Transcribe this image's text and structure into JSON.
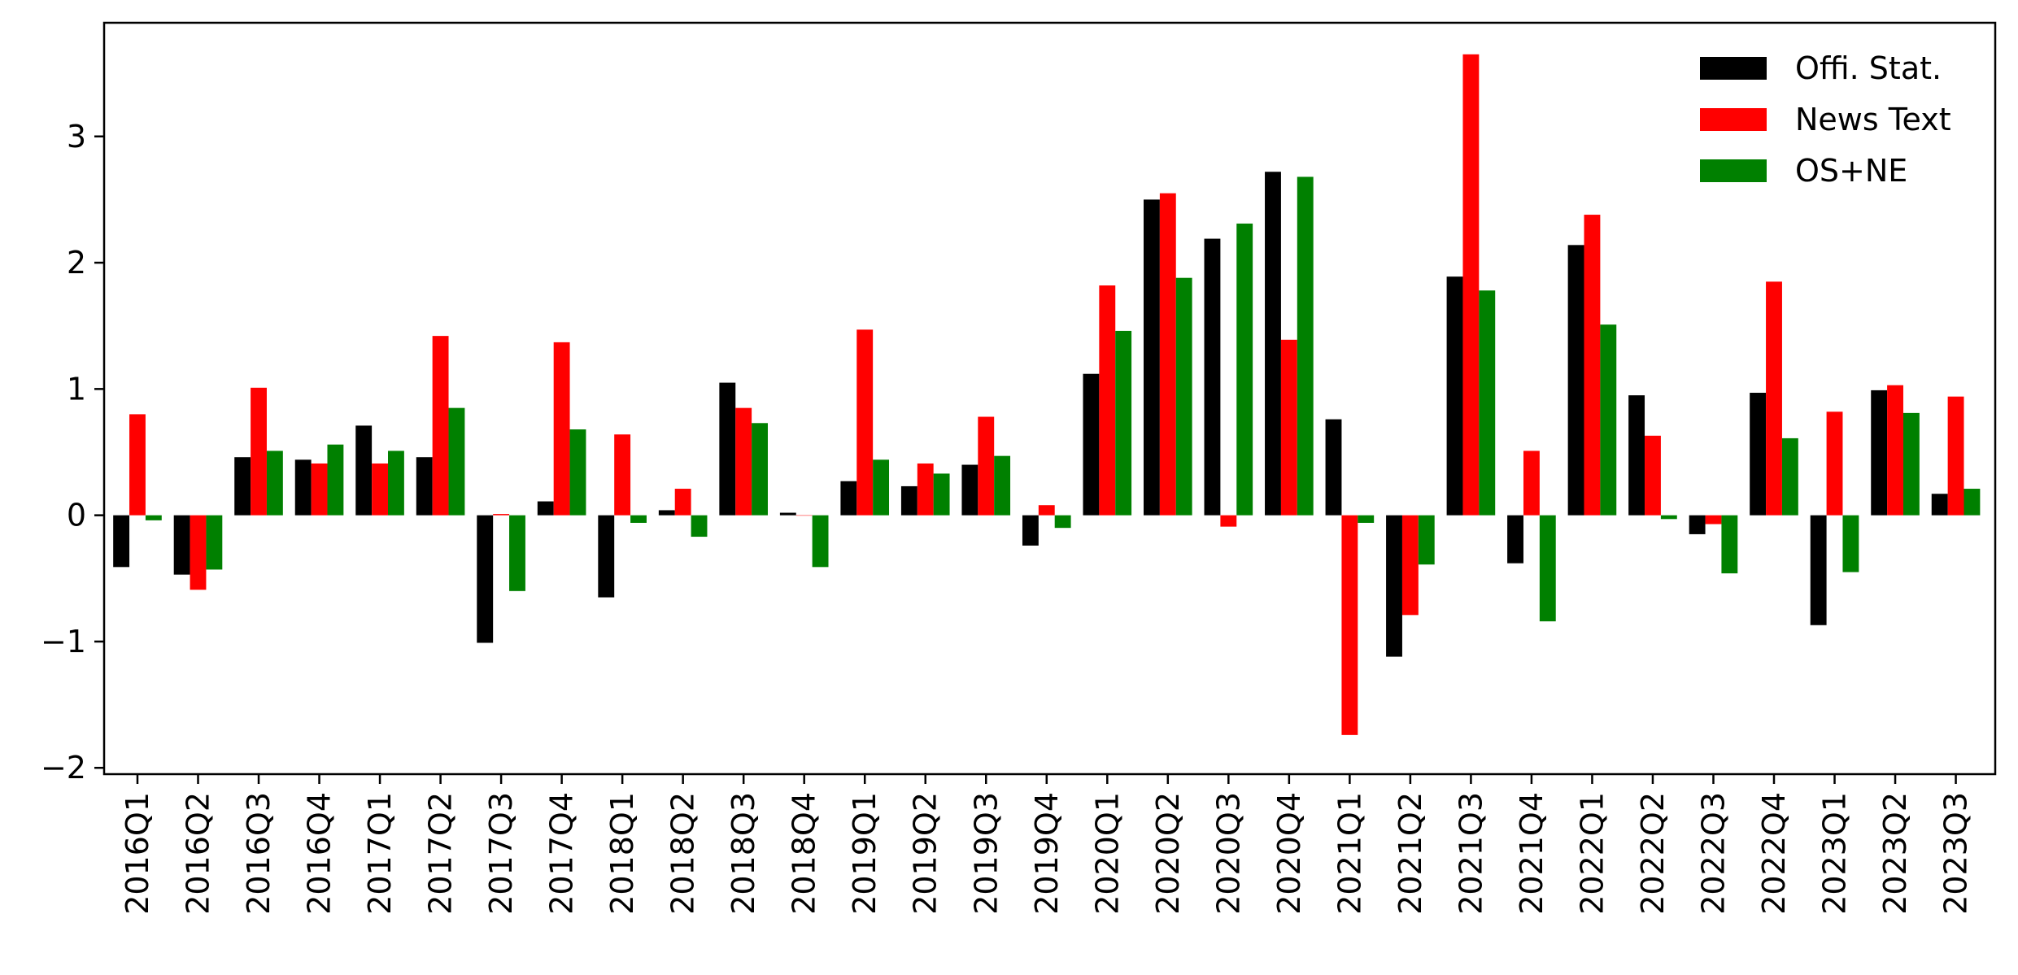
{
  "chart_data": {
    "type": "bar",
    "title": "",
    "xlabel": "",
    "ylabel": "",
    "ylim": [
      -2.05,
      3.9
    ],
    "yticks": [
      -2,
      -1,
      0,
      1,
      2,
      3
    ],
    "ytick_labels": [
      "−2",
      "−1",
      "0",
      "1",
      "2",
      "3"
    ],
    "grid": false,
    "legend_position": "top-right",
    "categories": [
      "2016Q1",
      "2016Q2",
      "2016Q3",
      "2016Q4",
      "2017Q1",
      "2017Q2",
      "2017Q3",
      "2017Q4",
      "2018Q1",
      "2018Q2",
      "2018Q3",
      "2018Q4",
      "2019Q1",
      "2019Q2",
      "2019Q3",
      "2019Q4",
      "2020Q1",
      "2020Q2",
      "2020Q3",
      "2020Q4",
      "2021Q1",
      "2021Q2",
      "2021Q3",
      "2021Q4",
      "2022Q1",
      "2022Q2",
      "2022Q3",
      "2022Q4",
      "2023Q1",
      "2023Q2",
      "2023Q3"
    ],
    "series": [
      {
        "name": "Offi. Stat.",
        "color": "#000000",
        "values": [
          -0.41,
          -0.47,
          0.46,
          0.44,
          0.71,
          0.46,
          -1.01,
          0.11,
          -0.65,
          0.04,
          1.05,
          0.02,
          0.27,
          0.23,
          0.4,
          -0.24,
          1.12,
          2.5,
          2.19,
          2.72,
          0.76,
          -1.12,
          1.89,
          -0.38,
          2.14,
          0.95,
          -0.15,
          0.97,
          -0.87,
          0.99,
          0.17
        ]
      },
      {
        "name": "News Text",
        "color": "#ff0000",
        "values": [
          0.8,
          -0.59,
          1.01,
          0.41,
          0.41,
          1.42,
          0.01,
          1.37,
          0.64,
          0.21,
          0.85,
          0.0,
          1.47,
          0.41,
          0.78,
          0.08,
          1.82,
          2.55,
          -0.09,
          1.39,
          -1.74,
          -0.79,
          3.65,
          0.51,
          2.38,
          0.63,
          -0.07,
          1.85,
          0.82,
          1.03,
          0.94
        ]
      },
      {
        "name": "OS+NE",
        "color": "#008000",
        "values": [
          -0.04,
          -0.43,
          0.51,
          0.56,
          0.51,
          0.85,
          -0.6,
          0.68,
          -0.06,
          -0.17,
          0.73,
          -0.41,
          0.44,
          0.33,
          0.47,
          -0.1,
          1.46,
          1.88,
          2.31,
          2.68,
          -0.06,
          -0.39,
          1.78,
          -0.84,
          1.51,
          -0.03,
          -0.46,
          0.61,
          -0.45,
          0.81,
          0.21
        ]
      }
    ]
  }
}
